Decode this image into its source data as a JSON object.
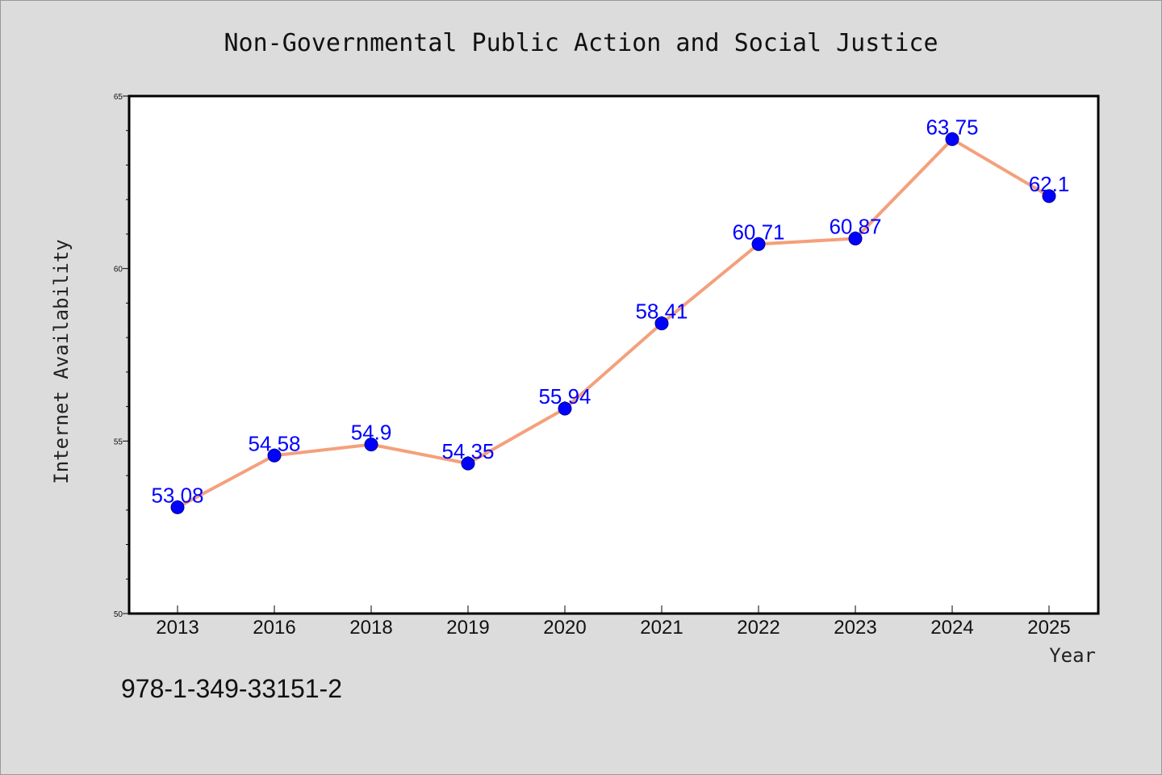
{
  "chart_data": {
    "type": "line",
    "title": "Non-Governmental Public Action and Social Justice",
    "xlabel": "Year",
    "ylabel": "Internet Availability",
    "categories": [
      "2013",
      "2016",
      "2018",
      "2019",
      "2020",
      "2021",
      "2022",
      "2023",
      "2024",
      "2025"
    ],
    "values": [
      53.08,
      54.58,
      54.9,
      54.35,
      55.94,
      58.41,
      60.71,
      60.87,
      63.75,
      62.1
    ],
    "data_labels": [
      "53.08",
      "54.58",
      "54.9",
      "54.35",
      "55.94",
      "58.41",
      "60.71",
      "60.87",
      "63.75",
      "62.1"
    ],
    "ylim": [
      50,
      65
    ],
    "yticks": [
      "50",
      "55",
      "60",
      "65"
    ],
    "grid": false,
    "line_color": "#f4a07c",
    "marker_color": "#0000ff",
    "label_color": "#0000ff"
  },
  "footer": {
    "isbn": "978-1-349-33151-2"
  }
}
